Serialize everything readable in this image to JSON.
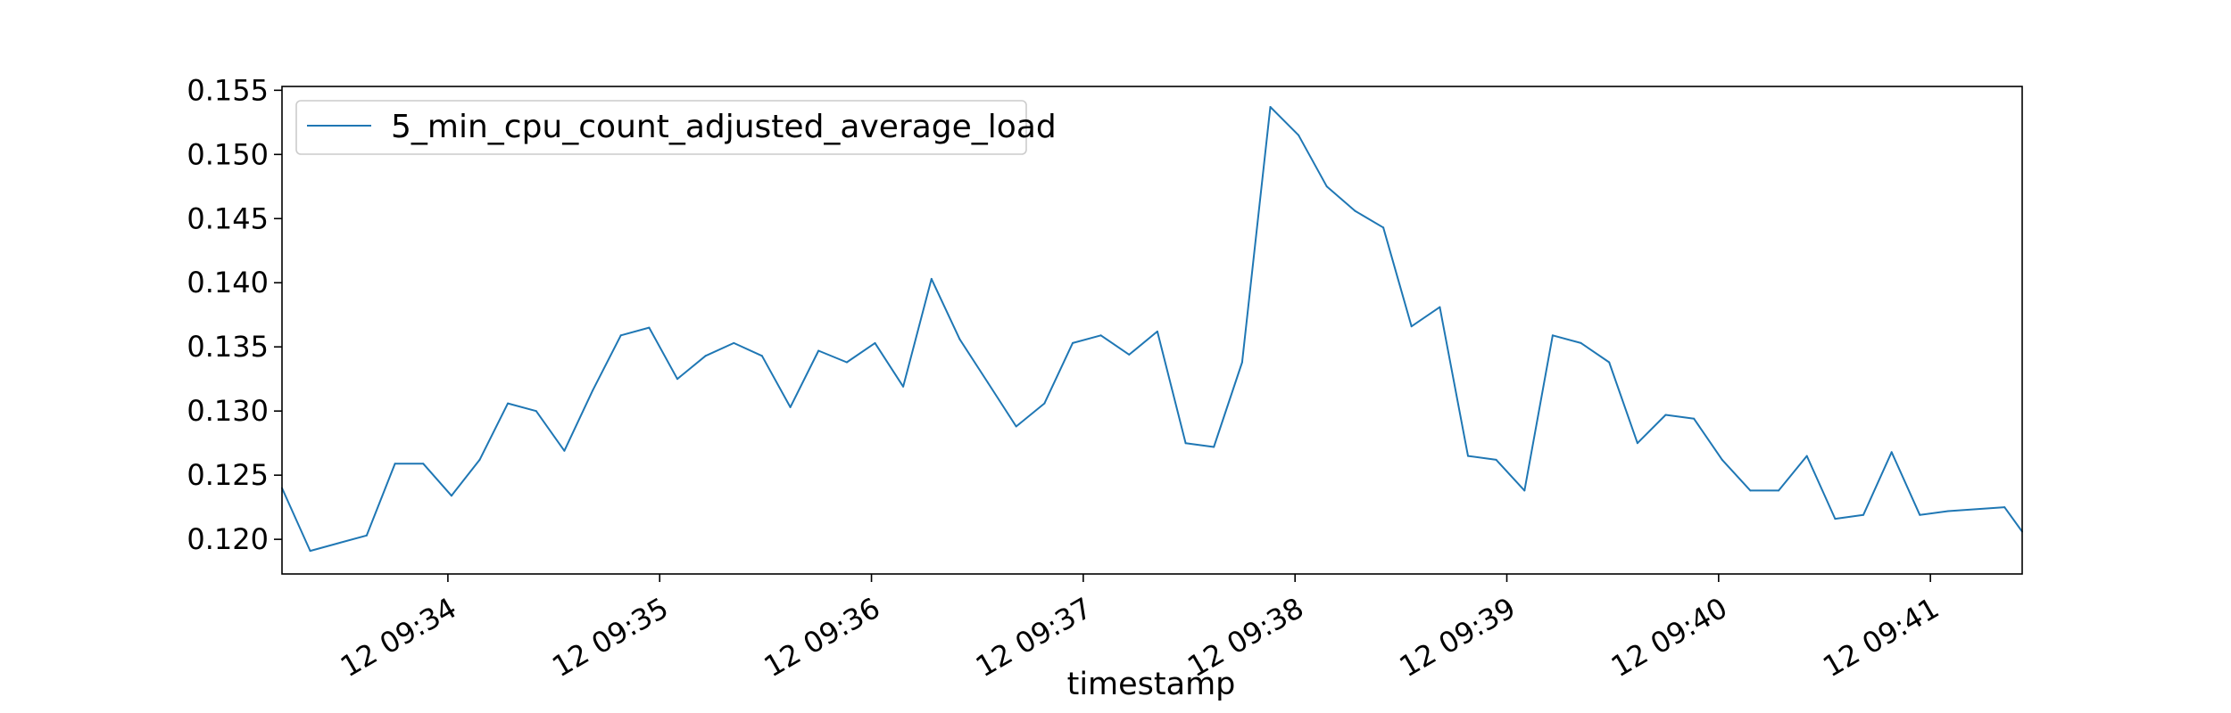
{
  "chart_data": {
    "type": "line",
    "xlabel": "timestamp",
    "ylabel": "",
    "ylim": [
      0.1173,
      0.1553
    ],
    "xlim_seconds": [
      0,
      493
    ],
    "legend_position": "top-left",
    "grid": false,
    "series_color": "#1f77b4",
    "x_ticks": [
      {
        "label": "12 09:34",
        "t": 47
      },
      {
        "label": "12 09:35",
        "t": 107
      },
      {
        "label": "12 09:36",
        "t": 167
      },
      {
        "label": "12 09:37",
        "t": 227
      },
      {
        "label": "12 09:38",
        "t": 287
      },
      {
        "label": "12 09:39",
        "t": 347
      },
      {
        "label": "12 09:40",
        "t": 407
      },
      {
        "label": "12 09:41",
        "t": 467
      }
    ],
    "y_ticks": [
      "0.120",
      "0.125",
      "0.130",
      "0.135",
      "0.140",
      "0.145",
      "0.150",
      "0.155"
    ],
    "series": [
      {
        "name": "5_min_cpu_count_adjusted_average_load",
        "t": [
          0,
          8,
          24,
          32,
          40,
          48,
          56,
          64,
          72,
          80,
          88,
          96,
          104,
          112,
          120,
          128,
          136,
          144,
          152,
          160,
          168,
          176,
          184,
          192,
          200,
          208,
          216,
          224,
          232,
          240,
          248,
          256,
          264,
          272,
          280,
          288,
          296,
          304,
          312,
          320,
          328,
          336,
          344,
          352,
          360,
          368,
          376,
          384,
          392,
          400,
          408,
          416,
          424,
          432,
          440,
          448,
          456,
          464,
          472,
          488,
          493
        ],
        "values": [
          0.124,
          0.1191,
          0.1203,
          0.1259,
          0.1259,
          0.1234,
          0.1262,
          0.1306,
          0.13,
          0.1269,
          0.1316,
          0.1359,
          0.1365,
          0.1325,
          0.1343,
          0.1353,
          0.1343,
          0.1303,
          0.1347,
          0.1338,
          0.1353,
          0.1319,
          0.1403,
          0.1356,
          0.1322,
          0.1288,
          0.1306,
          0.1353,
          0.1359,
          0.1344,
          0.1362,
          0.1275,
          0.1272,
          0.1338,
          0.1537,
          0.1515,
          0.1475,
          0.1456,
          0.1443,
          0.1366,
          0.1381,
          0.1265,
          0.1262,
          0.1238,
          0.1359,
          0.1353,
          0.1338,
          0.1275,
          0.1297,
          0.1294,
          0.1262,
          0.1238,
          0.1238,
          0.1265,
          0.1216,
          0.1219,
          0.1268,
          0.1219,
          0.1222,
          0.1225,
          0.1206
        ]
      }
    ]
  }
}
